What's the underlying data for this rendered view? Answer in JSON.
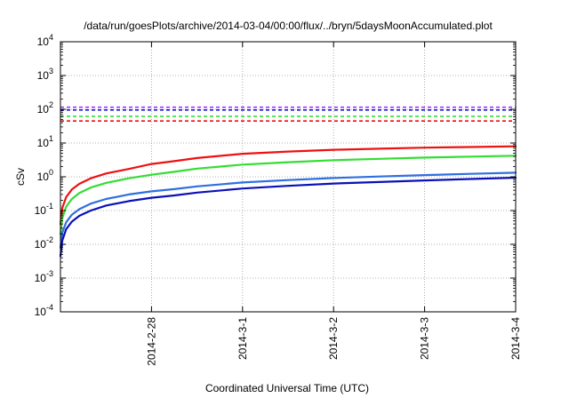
{
  "chart_data": {
    "type": "line",
    "title": "/data/run/goesPlots/archive/2014-03-04/00:00/flux/../bryn/5daysMoonAccumulated.plot",
    "xlabel": "Coordinated Universal Time (UTC)",
    "ylabel": "cSv",
    "x_scale": "time",
    "y_scale": "log",
    "xlim": [
      "2014-02-27 00:00",
      "2014-03-04 00:00"
    ],
    "ylim": [
      0.0001,
      10000
    ],
    "grid": true,
    "legend": "none",
    "x_ticks": [
      {
        "date": "2014-02-28 00:00",
        "label": "2014-2-28"
      },
      {
        "date": "2014-03-01 00:00",
        "label": "2014-3-1"
      },
      {
        "date": "2014-03-02 00:00",
        "label": "2014-3-2"
      },
      {
        "date": "2014-03-03 00:00",
        "label": "2014-3-3"
      },
      {
        "date": "2014-03-04 00:00",
        "label": "2014-3-4"
      }
    ],
    "y_ticks": [
      {
        "value": 0.0001,
        "base": "10",
        "exp": "-4"
      },
      {
        "value": 0.001,
        "base": "10",
        "exp": "-3"
      },
      {
        "value": 0.01,
        "base": "10",
        "exp": "-2"
      },
      {
        "value": 0.1,
        "base": "10",
        "exp": "-1"
      },
      {
        "value": 1,
        "base": "10",
        "exp": "0"
      },
      {
        "value": 10,
        "base": "10",
        "exp": "1"
      },
      {
        "value": 100,
        "base": "10",
        "exp": "2"
      },
      {
        "value": 1000,
        "base": "10",
        "exp": "3"
      },
      {
        "value": 10000,
        "base": "10",
        "exp": "4"
      }
    ],
    "threshold_lines": [
      {
        "color": "#9b30ff",
        "value": 115
      },
      {
        "color": "#1a1acc",
        "value": 95
      },
      {
        "color": "#33dd33",
        "value": 62
      },
      {
        "color": "#ee1111",
        "value": 45
      }
    ],
    "series": [
      {
        "color": "#ee1111",
        "x": [
          "2014-02-27 00:00",
          "2014-02-27 00:30",
          "2014-02-27 01:30",
          "2014-02-27 03:00",
          "2014-02-27 05:00",
          "2014-02-27 08:00",
          "2014-02-27 12:00",
          "2014-02-27 18:00",
          "2014-02-28 00:00",
          "2014-02-28 06:00",
          "2014-02-28 12:00",
          "2014-03-01 00:00",
          "2014-03-01 12:00",
          "2014-03-02 00:00",
          "2014-03-02 12:00",
          "2014-03-03 00:00",
          "2014-03-03 12:00",
          "2014-03-04 00:00"
        ],
        "y": [
          0.04,
          0.12,
          0.25,
          0.42,
          0.62,
          0.9,
          1.25,
          1.7,
          2.4,
          2.9,
          3.6,
          4.8,
          5.6,
          6.3,
          6.8,
          7.3,
          7.6,
          8.0
        ]
      },
      {
        "color": "#33dd33",
        "x": [
          "2014-02-27 00:00",
          "2014-02-27 00:30",
          "2014-02-27 01:30",
          "2014-02-27 03:00",
          "2014-02-27 05:00",
          "2014-02-27 08:00",
          "2014-02-27 12:00",
          "2014-02-27 18:00",
          "2014-02-28 00:00",
          "2014-02-28 06:00",
          "2014-02-28 12:00",
          "2014-03-01 00:00",
          "2014-03-01 12:00",
          "2014-03-02 00:00",
          "2014-03-02 12:00",
          "2014-03-03 00:00",
          "2014-03-03 12:00",
          "2014-03-04 00:00"
        ],
        "y": [
          0.02,
          0.06,
          0.13,
          0.22,
          0.33,
          0.48,
          0.66,
          0.9,
          1.15,
          1.4,
          1.75,
          2.3,
          2.7,
          3.1,
          3.4,
          3.7,
          3.95,
          4.2
        ]
      },
      {
        "color": "#2f6fe0",
        "x": [
          "2014-02-27 00:00",
          "2014-02-27 00:30",
          "2014-02-27 01:30",
          "2014-02-27 03:00",
          "2014-02-27 05:00",
          "2014-02-27 08:00",
          "2014-02-27 12:00",
          "2014-02-27 18:00",
          "2014-02-28 00:00",
          "2014-02-28 06:00",
          "2014-02-28 12:00",
          "2014-03-01 00:00",
          "2014-03-01 12:00",
          "2014-03-02 00:00",
          "2014-03-02 12:00",
          "2014-03-03 00:00",
          "2014-03-03 12:00",
          "2014-03-04 00:00"
        ],
        "y": [
          0.008,
          0.022,
          0.045,
          0.075,
          0.11,
          0.16,
          0.22,
          0.3,
          0.37,
          0.43,
          0.52,
          0.68,
          0.8,
          0.92,
          1.02,
          1.12,
          1.22,
          1.32
        ]
      },
      {
        "color": "#0a10b8",
        "x": [
          "2014-02-27 00:00",
          "2014-02-27 00:30",
          "2014-02-27 01:30",
          "2014-02-27 03:00",
          "2014-02-27 05:00",
          "2014-02-27 08:00",
          "2014-02-27 12:00",
          "2014-02-27 18:00",
          "2014-02-28 00:00",
          "2014-02-28 06:00",
          "2014-02-28 12:00",
          "2014-03-01 00:00",
          "2014-03-01 12:00",
          "2014-03-02 00:00",
          "2014-03-02 12:00",
          "2014-03-03 00:00",
          "2014-03-03 12:00",
          "2014-03-04 00:00"
        ],
        "y": [
          0.0045,
          0.013,
          0.028,
          0.047,
          0.07,
          0.1,
          0.14,
          0.19,
          0.24,
          0.28,
          0.34,
          0.45,
          0.54,
          0.63,
          0.7,
          0.78,
          0.86,
          0.94
        ]
      }
    ]
  }
}
